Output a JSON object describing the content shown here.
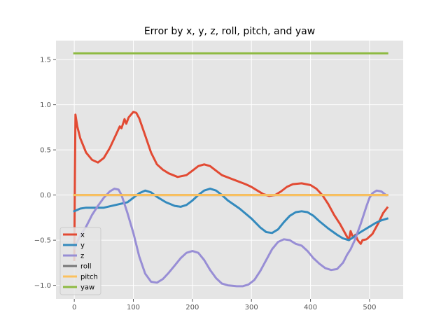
{
  "chart_data": {
    "type": "line",
    "title": "Error by x, y, z, roll, pitch, and yaw",
    "xlabel": "",
    "ylabel": "",
    "xlim": [
      -31,
      557
    ],
    "ylim": [
      -1.15,
      1.71
    ],
    "xticks": [
      0,
      100,
      200,
      300,
      400,
      500
    ],
    "xtick_labels": [
      "0",
      "100",
      "200",
      "300",
      "400",
      "500"
    ],
    "yticks": [
      -1.0,
      -0.5,
      0.0,
      0.5,
      1.0,
      1.5
    ],
    "ytick_labels": [
      "−1.0",
      "−0.5",
      "0.0",
      "0.5",
      "1.0",
      "1.5"
    ],
    "grid": true,
    "legend_position": "lower-left",
    "series": [
      {
        "name": "x",
        "color": "#e24a33",
        "points": [
          [
            0,
            -0.72
          ],
          [
            1,
            0.2
          ],
          [
            2,
            0.89
          ],
          [
            5,
            0.76
          ],
          [
            10,
            0.63
          ],
          [
            20,
            0.47
          ],
          [
            30,
            0.39
          ],
          [
            40,
            0.36
          ],
          [
            50,
            0.41
          ],
          [
            60,
            0.52
          ],
          [
            70,
            0.66
          ],
          [
            77,
            0.76
          ],
          [
            80,
            0.74
          ],
          [
            85,
            0.84
          ],
          [
            88,
            0.79
          ],
          [
            92,
            0.86
          ],
          [
            100,
            0.92
          ],
          [
            105,
            0.91
          ],
          [
            110,
            0.85
          ],
          [
            120,
            0.66
          ],
          [
            130,
            0.47
          ],
          [
            140,
            0.34
          ],
          [
            150,
            0.28
          ],
          [
            160,
            0.24
          ],
          [
            175,
            0.2
          ],
          [
            190,
            0.22
          ],
          [
            200,
            0.27
          ],
          [
            210,
            0.32
          ],
          [
            220,
            0.34
          ],
          [
            230,
            0.32
          ],
          [
            240,
            0.27
          ],
          [
            250,
            0.22
          ],
          [
            270,
            0.17
          ],
          [
            290,
            0.12
          ],
          [
            300,
            0.09
          ],
          [
            310,
            0.05
          ],
          [
            320,
            0.01
          ],
          [
            330,
            -0.01
          ],
          [
            340,
            0.0
          ],
          [
            350,
            0.04
          ],
          [
            360,
            0.09
          ],
          [
            370,
            0.12
          ],
          [
            385,
            0.13
          ],
          [
            400,
            0.11
          ],
          [
            410,
            0.07
          ],
          [
            420,
            0.0
          ],
          [
            430,
            -0.1
          ],
          [
            440,
            -0.22
          ],
          [
            450,
            -0.32
          ],
          [
            460,
            -0.44
          ],
          [
            465,
            -0.5
          ],
          [
            468,
            -0.4
          ],
          [
            472,
            -0.47
          ],
          [
            476,
            -0.44
          ],
          [
            480,
            -0.5
          ],
          [
            485,
            -0.54
          ],
          [
            488,
            -0.5
          ],
          [
            495,
            -0.49
          ],
          [
            505,
            -0.43
          ],
          [
            515,
            -0.31
          ],
          [
            523,
            -0.2
          ],
          [
            530,
            -0.14
          ]
        ]
      },
      {
        "name": "y",
        "color": "#348abd",
        "points": [
          [
            0,
            -0.18
          ],
          [
            10,
            -0.15
          ],
          [
            20,
            -0.14
          ],
          [
            50,
            -0.14
          ],
          [
            70,
            -0.11
          ],
          [
            90,
            -0.08
          ],
          [
            100,
            -0.03
          ],
          [
            110,
            0.02
          ],
          [
            120,
            0.05
          ],
          [
            130,
            0.03
          ],
          [
            140,
            -0.02
          ],
          [
            155,
            -0.08
          ],
          [
            170,
            -0.12
          ],
          [
            180,
            -0.13
          ],
          [
            190,
            -0.11
          ],
          [
            200,
            -0.06
          ],
          [
            210,
            0.0
          ],
          [
            220,
            0.05
          ],
          [
            230,
            0.07
          ],
          [
            240,
            0.05
          ],
          [
            250,
            0.0
          ],
          [
            260,
            -0.06
          ],
          [
            280,
            -0.15
          ],
          [
            300,
            -0.26
          ],
          [
            315,
            -0.36
          ],
          [
            325,
            -0.41
          ],
          [
            335,
            -0.42
          ],
          [
            345,
            -0.38
          ],
          [
            355,
            -0.3
          ],
          [
            365,
            -0.23
          ],
          [
            375,
            -0.19
          ],
          [
            385,
            -0.18
          ],
          [
            395,
            -0.19
          ],
          [
            405,
            -0.23
          ],
          [
            415,
            -0.29
          ],
          [
            430,
            -0.37
          ],
          [
            445,
            -0.44
          ],
          [
            455,
            -0.48
          ],
          [
            465,
            -0.5
          ],
          [
            472,
            -0.47
          ],
          [
            480,
            -0.43
          ],
          [
            490,
            -0.39
          ],
          [
            500,
            -0.35
          ],
          [
            510,
            -0.31
          ],
          [
            520,
            -0.28
          ],
          [
            530,
            -0.26
          ]
        ]
      },
      {
        "name": "z",
        "color": "#988ed5",
        "points": [
          [
            0,
            -0.59
          ],
          [
            10,
            -0.45
          ],
          [
            20,
            -0.35
          ],
          [
            30,
            -0.22
          ],
          [
            40,
            -0.12
          ],
          [
            50,
            -0.03
          ],
          [
            60,
            0.04
          ],
          [
            68,
            0.07
          ],
          [
            75,
            0.06
          ],
          [
            80,
            0.0
          ],
          [
            85,
            -0.1
          ],
          [
            90,
            -0.2
          ],
          [
            100,
            -0.42
          ],
          [
            110,
            -0.68
          ],
          [
            120,
            -0.87
          ],
          [
            130,
            -0.96
          ],
          [
            140,
            -0.97
          ],
          [
            150,
            -0.93
          ],
          [
            160,
            -0.86
          ],
          [
            170,
            -0.78
          ],
          [
            180,
            -0.7
          ],
          [
            190,
            -0.64
          ],
          [
            200,
            -0.62
          ],
          [
            210,
            -0.64
          ],
          [
            220,
            -0.72
          ],
          [
            230,
            -0.83
          ],
          [
            240,
            -0.92
          ],
          [
            250,
            -0.98
          ],
          [
            260,
            -1.0
          ],
          [
            275,
            -1.01
          ],
          [
            285,
            -1.01
          ],
          [
            295,
            -0.99
          ],
          [
            305,
            -0.94
          ],
          [
            315,
            -0.84
          ],
          [
            325,
            -0.72
          ],
          [
            335,
            -0.6
          ],
          [
            345,
            -0.52
          ],
          [
            355,
            -0.49
          ],
          [
            365,
            -0.5
          ],
          [
            375,
            -0.54
          ],
          [
            385,
            -0.56
          ],
          [
            395,
            -0.62
          ],
          [
            405,
            -0.7
          ],
          [
            415,
            -0.76
          ],
          [
            425,
            -0.81
          ],
          [
            435,
            -0.83
          ],
          [
            445,
            -0.82
          ],
          [
            455,
            -0.75
          ],
          [
            462,
            -0.66
          ],
          [
            468,
            -0.6
          ],
          [
            475,
            -0.5
          ],
          [
            480,
            -0.41
          ],
          [
            485,
            -0.32
          ],
          [
            490,
            -0.22
          ],
          [
            495,
            -0.12
          ],
          [
            500,
            -0.03
          ],
          [
            505,
            0.02
          ],
          [
            512,
            0.05
          ],
          [
            520,
            0.04
          ],
          [
            528,
            0.0
          ]
        ]
      },
      {
        "name": "roll",
        "color": "#777777",
        "points": [
          [
            0,
            0.0
          ],
          [
            530,
            0.0
          ]
        ]
      },
      {
        "name": "pitch",
        "color": "#fbc15e",
        "points": [
          [
            0,
            0.0
          ],
          [
            530,
            0.0
          ]
        ]
      },
      {
        "name": "yaw",
        "color": "#8eba42",
        "points": [
          [
            0,
            1.57
          ],
          [
            530,
            1.57
          ]
        ]
      }
    ]
  }
}
